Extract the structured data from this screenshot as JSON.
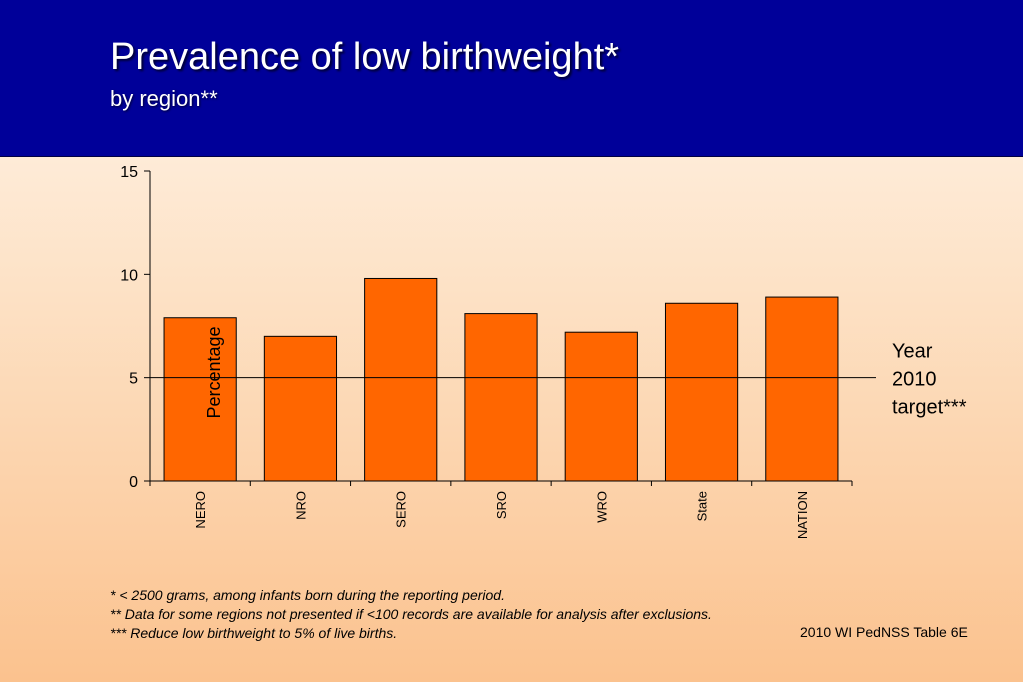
{
  "slide": {
    "title": "Prevalence of low birthweight*",
    "subtitle": "by region**",
    "source": "2010 WI PedNSS Table 6E",
    "footnotes": [
      "*    < 2500 grams, among infants born during the reporting period.",
      "**   Data for some regions not presented if <100 records are available for analysis after exclusions.",
      "*** Reduce low birthweight to 5% of live births."
    ]
  },
  "chart_data": {
    "type": "bar",
    "categories": [
      "NERO",
      "NRO",
      "SERO",
      "SRO",
      "WRO",
      "State",
      "NATION"
    ],
    "values": [
      7.9,
      7.0,
      9.8,
      8.1,
      7.2,
      8.6,
      8.9
    ],
    "ylabel": "Percentage",
    "xlabel": "",
    "ylim": [
      0,
      15
    ],
    "yticks": [
      0,
      5,
      10,
      15
    ],
    "grid": false,
    "bar_color": "#ff6600",
    "reference_line": {
      "value": 5,
      "label_lines": [
        "Year",
        "2010",
        "target***"
      ]
    }
  }
}
